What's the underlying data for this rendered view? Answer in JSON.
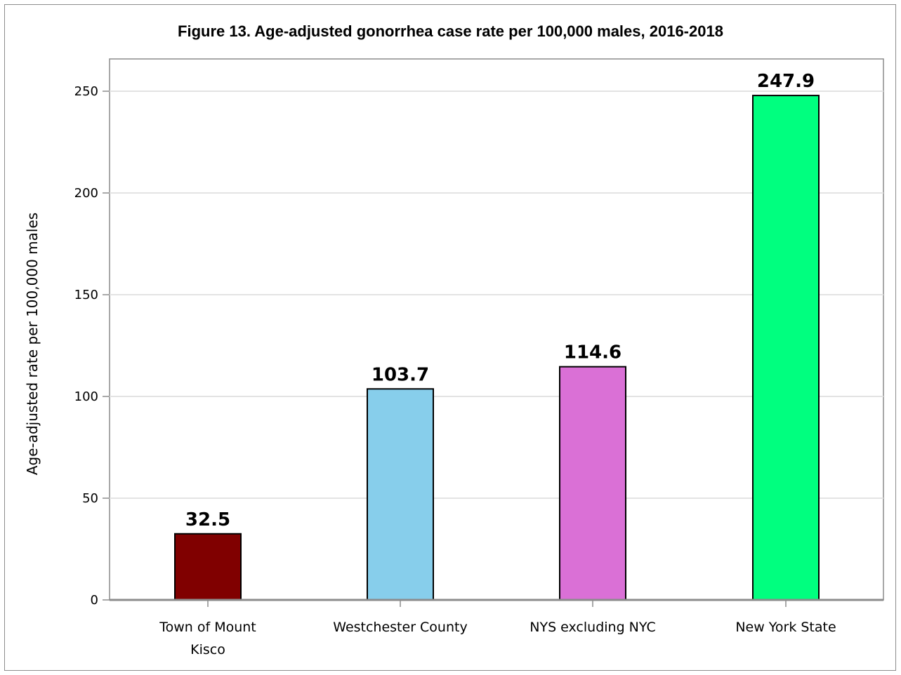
{
  "chart_data": {
    "type": "bar",
    "title": "Figure 13. Age-adjusted gonorrhea case rate per 100,000 males, 2016-2018",
    "xlabel": "",
    "ylabel": "Age-adjusted rate per 100,000 males",
    "categories": [
      [
        "Town of Mount",
        "Kisco"
      ],
      [
        "Westchester County"
      ],
      [
        "NYS excluding NYC"
      ],
      [
        "New York State"
      ]
    ],
    "values": [
      32.5,
      103.7,
      114.6,
      247.9
    ],
    "value_labels": [
      "32.5",
      "103.7",
      "114.6",
      "247.9"
    ],
    "colors": [
      "#800000",
      "#87ceeb",
      "#da70d6",
      "#00ff7f"
    ],
    "ylim": [
      0,
      250
    ],
    "yticks": [
      0,
      50,
      100,
      150,
      200,
      250
    ],
    "grid": true,
    "legend": "none"
  }
}
